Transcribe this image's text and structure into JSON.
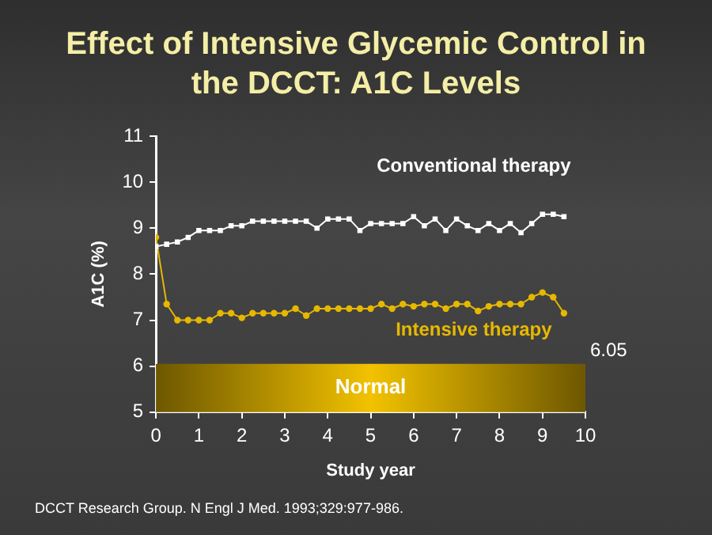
{
  "chart_data": {
    "type": "line",
    "title": "Effect of Intensive Glycemic Control in the DCCT: A1C Levels",
    "xlabel": "Study year",
    "ylabel": "A1C (%)",
    "x": [
      0,
      0.25,
      0.5,
      0.75,
      1,
      1.25,
      1.5,
      1.75,
      2,
      2.25,
      2.5,
      2.75,
      3,
      3.25,
      3.5,
      3.75,
      4,
      4.25,
      4.5,
      4.75,
      5,
      5.25,
      5.5,
      5.75,
      6,
      6.25,
      6.5,
      6.75,
      7,
      7.25,
      7.5,
      7.75,
      8,
      8.25,
      8.5,
      8.75,
      9,
      9.25,
      9.5
    ],
    "series": [
      {
        "name": "Conventional therapy",
        "color": "#ffffff",
        "marker": "square",
        "values": [
          8.6,
          8.65,
          8.7,
          8.8,
          8.95,
          8.95,
          8.95,
          9.05,
          9.05,
          9.15,
          9.15,
          9.15,
          9.15,
          9.15,
          9.15,
          9.0,
          9.2,
          9.2,
          9.2,
          8.95,
          9.1,
          9.1,
          9.1,
          9.1,
          9.25,
          9.05,
          9.2,
          8.95,
          9.2,
          9.05,
          8.95,
          9.1,
          8.95,
          9.1,
          8.9,
          9.1,
          9.3,
          9.3,
          9.25
        ]
      },
      {
        "name": "Intensive therapy",
        "color": "#e6b800",
        "marker": "circle",
        "values": [
          8.8,
          7.35,
          7.0,
          7.0,
          7.0,
          7.0,
          7.15,
          7.15,
          7.05,
          7.15,
          7.15,
          7.15,
          7.15,
          7.25,
          7.1,
          7.25,
          7.25,
          7.25,
          7.25,
          7.25,
          7.25,
          7.35,
          7.25,
          7.35,
          7.3,
          7.35,
          7.35,
          7.25,
          7.35,
          7.35,
          7.2,
          7.3,
          7.35,
          7.35,
          7.35,
          7.5,
          7.6,
          7.5,
          7.15
        ]
      }
    ],
    "xlim": [
      0,
      10
    ],
    "xticks": [
      0,
      1,
      2,
      3,
      4,
      5,
      6,
      7,
      8,
      9,
      10
    ],
    "ylim": [
      5,
      11
    ],
    "yticks": [
      5,
      6,
      7,
      8,
      9,
      10,
      11
    ],
    "bands": [
      {
        "axis": "y",
        "from": 5,
        "to": 6.05,
        "label": "Normal",
        "color": "#f2c200"
      }
    ],
    "annotations": [
      {
        "text": "6.05",
        "x": 10,
        "y": 6.05
      },
      "DCCT Research Group. N Engl J Med. 1993;329:977-986."
    ],
    "grid": false,
    "legend": false
  }
}
